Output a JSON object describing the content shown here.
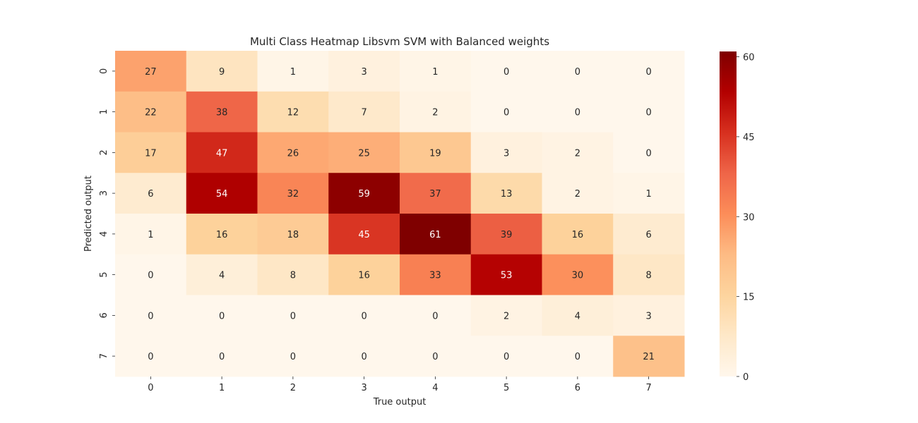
{
  "chart_data": {
    "type": "heatmap",
    "title": "Multi Class Heatmap Libsvm SVM with Balanced weights",
    "xlabel": "True output",
    "ylabel": "Predicted output",
    "x_categories": [
      "0",
      "1",
      "2",
      "3",
      "4",
      "5",
      "6",
      "7"
    ],
    "y_categories": [
      "0",
      "1",
      "2",
      "3",
      "4",
      "5",
      "6",
      "7"
    ],
    "values": [
      [
        27,
        9,
        1,
        3,
        1,
        0,
        0,
        0
      ],
      [
        22,
        38,
        12,
        7,
        2,
        0,
        0,
        0
      ],
      [
        17,
        47,
        26,
        25,
        19,
        3,
        2,
        0
      ],
      [
        6,
        54,
        32,
        59,
        37,
        13,
        2,
        1
      ],
      [
        1,
        16,
        18,
        45,
        61,
        39,
        16,
        6
      ],
      [
        0,
        4,
        8,
        16,
        33,
        53,
        30,
        8
      ],
      [
        0,
        0,
        0,
        0,
        0,
        2,
        4,
        3
      ],
      [
        0,
        0,
        0,
        0,
        0,
        0,
        0,
        21
      ]
    ],
    "colorbar": {
      "min": 0,
      "max": 61,
      "ticks": [
        0,
        15,
        30,
        45,
        60
      ],
      "colormap": "OrRd"
    },
    "annotations_visible": true
  }
}
